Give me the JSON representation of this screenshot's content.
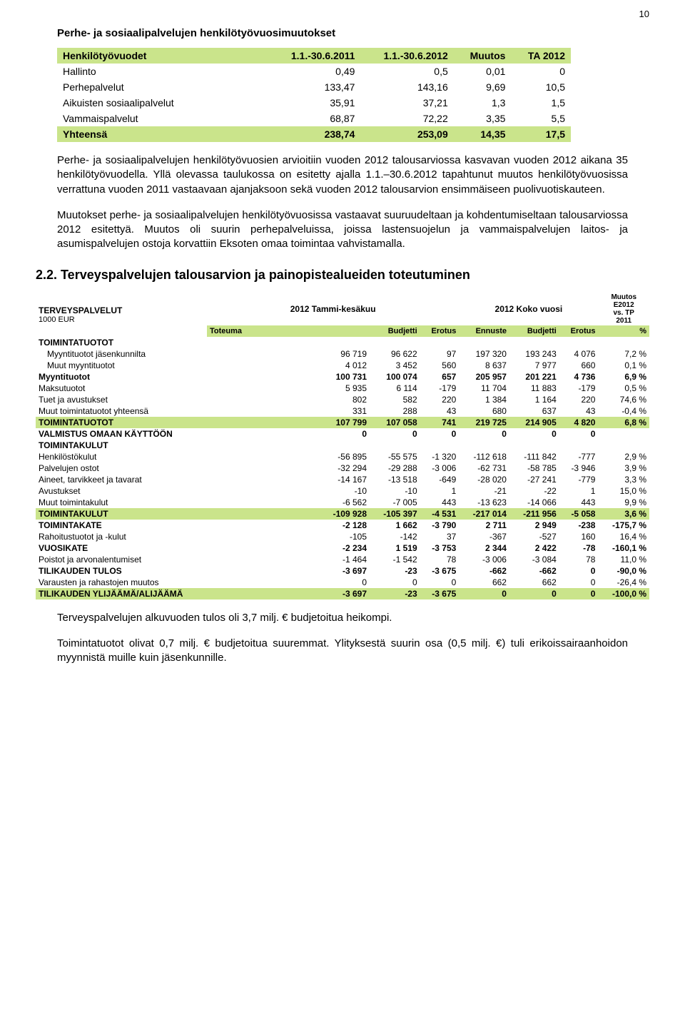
{
  "page_number": "10",
  "sec1": {
    "title": "Perhe- ja sosiaalipalvelujen henkilötyövuosimuutokset",
    "headers": [
      "Henkilötyövuodet",
      "1.1.-30.6.2011",
      "1.1.-30.6.2012",
      "Muutos",
      "TA 2012"
    ],
    "rows": [
      {
        "label": "Hallinto",
        "c": [
          "0,49",
          "0,5",
          "0,01",
          "0"
        ]
      },
      {
        "label": "Perhepalvelut",
        "c": [
          "133,47",
          "143,16",
          "9,69",
          "10,5"
        ]
      },
      {
        "label": "Aikuisten sosiaalipalvelut",
        "c": [
          "35,91",
          "37,21",
          "1,3",
          "1,5"
        ]
      },
      {
        "label": "Vammaispalvelut",
        "c": [
          "68,87",
          "72,22",
          "3,35",
          "5,5"
        ]
      }
    ],
    "total": {
      "label": "Yhteensä",
      "c": [
        "238,74",
        "253,09",
        "14,35",
        "17,5"
      ]
    }
  },
  "para1": "Perhe- ja sosiaalipalvelujen henkilötyövuosien arvioitiin vuoden 2012 talousarviossa kasvavan vuoden 2012 aikana 35 henkilötyövuodella. Yllä olevassa taulukossa on esitetty ajalla 1.1.–30.6.2012 tapahtunut muutos henkilötyövuosissa verrattuna vuoden 2011 vastaavaan ajanjaksoon sekä vuoden 2012 talousarvion ensimmäiseen puolivuotiskauteen.",
  "para2": "Muutokset perhe- ja sosiaalipalvelujen henkilötyövuosissa vastaavat suuruudeltaan ja kohdentumiseltaan talousarviossa 2012 esitettyä. Muutos oli suurin perhepalveluissa, joissa lastensuojelun ja vammaispalvelujen laitos- ja asumispalvelujen ostoja korvattiin Eksoten omaa toimintaa vahvistamalla.",
  "h2": "2.2. Terveyspalvelujen talousarvion ja painopistealueiden toteutuminen",
  "sec2": {
    "title_left": "TERVEYSPALVELUT",
    "title_left_sub": "1000 EUR",
    "period1": "2012 Tammi-kesäkuu",
    "period2": "2012 Koko vuosi",
    "muutos_hdr1": "Muutos",
    "muutos_hdr2": "E2012",
    "muutos_hdr3": "vs. TP",
    "muutos_hdr4": "2011",
    "cols": [
      "",
      "Toteuma",
      "Budjetti",
      "Erotus",
      "Ennuste",
      "Budjetti",
      "Erotus",
      "%"
    ],
    "rows": [
      {
        "label": "TOIMINTATUOTOT",
        "bold": true,
        "c": [
          "",
          "",
          "",
          "",
          "",
          "",
          ""
        ]
      },
      {
        "label": "Myyntituotot jäsenkunnilta",
        "indent": true,
        "c": [
          "96 719",
          "96 622",
          "97",
          "197 320",
          "193 243",
          "4 076",
          "7,2 %"
        ]
      },
      {
        "label": "Muut myyntituotot",
        "indent": true,
        "c": [
          "4 012",
          "3 452",
          "560",
          "8 637",
          "7 977",
          "660",
          "0,1 %"
        ]
      },
      {
        "label": "Myyntituotot",
        "bold": true,
        "c": [
          "100 731",
          "100 074",
          "657",
          "205 957",
          "201 221",
          "4 736",
          "6,9 %"
        ]
      },
      {
        "label": "Maksutuotot",
        "c": [
          "5 935",
          "6 114",
          "-179",
          "11 704",
          "11 883",
          "-179",
          "0,5 %"
        ]
      },
      {
        "label": "Tuet ja avustukset",
        "c": [
          "802",
          "582",
          "220",
          "1 384",
          "1 164",
          "220",
          "74,6 %"
        ]
      },
      {
        "label": "Muut toimintatuotot yhteensä",
        "c": [
          "331",
          "288",
          "43",
          "680",
          "637",
          "43",
          "-0,4 %"
        ]
      },
      {
        "label": "TOIMINTATUOTOT",
        "hl": true,
        "c": [
          "107 799",
          "107 058",
          "741",
          "219 725",
          "214 905",
          "4 820",
          "6,8 %"
        ]
      },
      {
        "label": "VALMISTUS OMAAN KÄYTTÖÖN",
        "bold": true,
        "c": [
          "0",
          "0",
          "0",
          "0",
          "0",
          "0",
          ""
        ]
      },
      {
        "label": "TOIMINTAKULUT",
        "bold": true,
        "c": [
          "",
          "",
          "",
          "",
          "",
          "",
          ""
        ]
      },
      {
        "label": "Henkilöstökulut",
        "c": [
          "-56 895",
          "-55 575",
          "-1 320",
          "-112 618",
          "-111 842",
          "-777",
          "2,9 %"
        ]
      },
      {
        "label": "Palvelujen ostot",
        "c": [
          "-32 294",
          "-29 288",
          "-3 006",
          "-62 731",
          "-58 785",
          "-3 946",
          "3,9 %"
        ]
      },
      {
        "label": "Aineet, tarvikkeet ja tavarat",
        "c": [
          "-14 167",
          "-13 518",
          "-649",
          "-28 020",
          "-27 241",
          "-779",
          "3,3 %"
        ]
      },
      {
        "label": "Avustukset",
        "c": [
          "-10",
          "-10",
          "1",
          "-21",
          "-22",
          "1",
          "15,0 %"
        ]
      },
      {
        "label": "Muut toimintakulut",
        "c": [
          "-6 562",
          "-7 005",
          "443",
          "-13 623",
          "-14 066",
          "443",
          "9,9 %"
        ]
      },
      {
        "label": "TOIMINTAKULUT",
        "hl": true,
        "c": [
          "-109 928",
          "-105 397",
          "-4 531",
          "-217 014",
          "-211 956",
          "-5 058",
          "3,6 %"
        ]
      },
      {
        "label": "TOIMINTAKATE",
        "bold": true,
        "c": [
          "-2 128",
          "1 662",
          "-3 790",
          "2 711",
          "2 949",
          "-238",
          "-175,7 %"
        ]
      },
      {
        "label": "Rahoitustuotot ja -kulut",
        "c": [
          "-105",
          "-142",
          "37",
          "-367",
          "-527",
          "160",
          "16,4 %"
        ]
      },
      {
        "label": "VUOSIKATE",
        "bold": true,
        "c": [
          "-2 234",
          "1 519",
          "-3 753",
          "2 344",
          "2 422",
          "-78",
          "-160,1 %"
        ]
      },
      {
        "label": "Poistot ja arvonalentumiset",
        "c": [
          "-1 464",
          "-1 542",
          "78",
          "-3 006",
          "-3 084",
          "78",
          "11,0 %"
        ]
      },
      {
        "label": "TILIKAUDEN TULOS",
        "bold": true,
        "c": [
          "-3 697",
          "-23",
          "-3 675",
          "-662",
          "-662",
          "0",
          "-90,0 %"
        ]
      },
      {
        "label": "Varausten ja rahastojen muutos",
        "c": [
          "0",
          "0",
          "0",
          "662",
          "662",
          "0",
          "-26,4 %"
        ]
      },
      {
        "label": "TILIKAUDEN YLIJÄÄMÄ/ALIJÄÄMÄ",
        "hl": true,
        "c": [
          "-3 697",
          "-23",
          "-3 675",
          "0",
          "0",
          "0",
          "-100,0 %"
        ]
      }
    ]
  },
  "para3": "Terveyspalvelujen alkuvuoden tulos oli 3,7 milj. € budjetoitua heikompi.",
  "para4": "Toimintatuotot olivat 0,7 milj. € budjetoitua suuremmat. Ylityksestä suurin osa (0,5 milj. €) tuli erikoissairaanhoidon myynnistä muille kuin jäsenkunnille.",
  "colors": {
    "accent": "#cae48b",
    "text": "#000000",
    "bg": "#ffffff"
  }
}
